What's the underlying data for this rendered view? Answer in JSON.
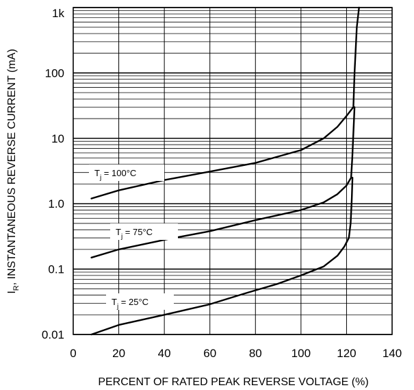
{
  "chart_data": {
    "type": "line",
    "xlabel": "PERCENT OF RATED PEAK REVERSE VOLTAGE (%)",
    "ylabel": {
      "main": "I",
      "sub": "R",
      "rest": ", INSTANTANEOUS REVERSE CURRENT (mA)"
    },
    "xlim": [
      0,
      140
    ],
    "ylim": [
      0.01,
      1000
    ],
    "yscale": "log",
    "grid": true,
    "x_ticks": [
      0,
      20,
      40,
      60,
      80,
      100,
      120,
      140
    ],
    "x_tick_labels": [
      "0",
      "20",
      "40",
      "60",
      "80",
      "100",
      "120",
      "140"
    ],
    "y_ticks": [
      0.01,
      0.1,
      1,
      10,
      100,
      1000
    ],
    "y_tick_labels": [
      "0.01",
      "0.1",
      "1.0",
      "10",
      "100",
      "1k"
    ],
    "series": [
      {
        "label": {
          "main": "T",
          "sub": "j",
          "rest": " = 100°C"
        },
        "points": [
          [
            8,
            1.2
          ],
          [
            20,
            1.6
          ],
          [
            40,
            2.3
          ],
          [
            60,
            3.1
          ],
          [
            80,
            4.2
          ],
          [
            100,
            6.6
          ],
          [
            110,
            10
          ],
          [
            116,
            15
          ],
          [
            120,
            22
          ],
          [
            123,
            30
          ],
          [
            123.5,
            100
          ],
          [
            124.5,
            500
          ],
          [
            125.5,
            1000
          ]
        ]
      },
      {
        "label": {
          "main": "T",
          "sub": "j",
          "rest": " = 75°C"
        },
        "points": [
          [
            8,
            0.15
          ],
          [
            20,
            0.2
          ],
          [
            40,
            0.28
          ],
          [
            60,
            0.38
          ],
          [
            80,
            0.56
          ],
          [
            100,
            0.8
          ],
          [
            110,
            1.05
          ],
          [
            116,
            1.4
          ],
          [
            120,
            1.9
          ],
          [
            122,
            2.5
          ],
          [
            122.5,
            5
          ],
          [
            123.5,
            30
          ]
        ]
      },
      {
        "label": {
          "main": "T",
          "sub": "j",
          "rest": " = 25°C"
        },
        "points": [
          [
            8,
            0.01
          ],
          [
            20,
            0.014
          ],
          [
            40,
            0.02
          ],
          [
            60,
            0.029
          ],
          [
            75,
            0.042
          ],
          [
            90,
            0.06
          ],
          [
            100,
            0.08
          ],
          [
            110,
            0.11
          ],
          [
            116,
            0.16
          ],
          [
            119,
            0.22
          ],
          [
            121,
            0.3
          ],
          [
            121.8,
            0.5
          ],
          [
            122.3,
            1.2
          ],
          [
            122.6,
            2.5
          ]
        ]
      }
    ]
  }
}
